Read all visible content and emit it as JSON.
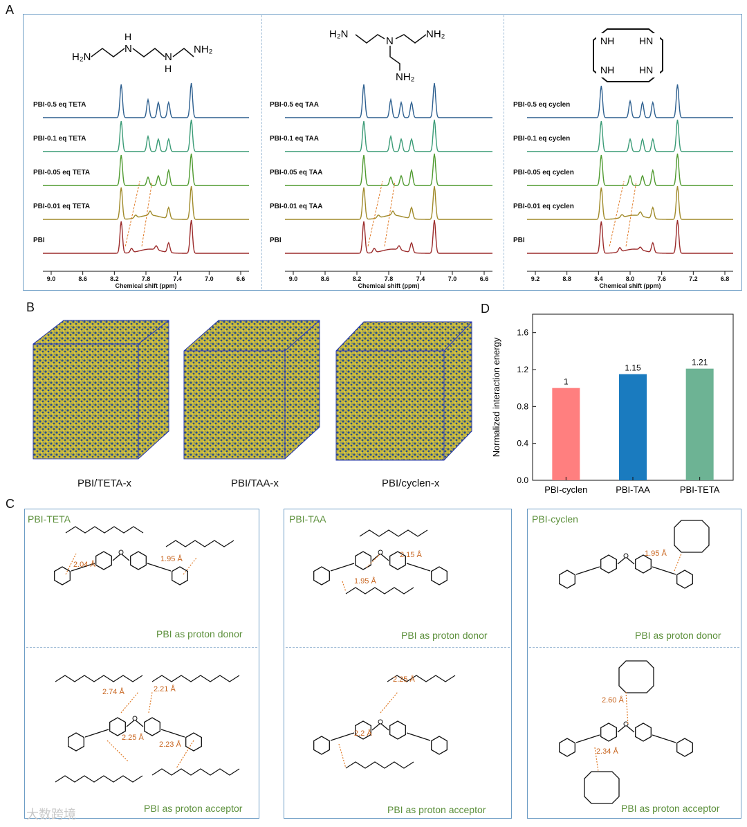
{
  "panel_letters": {
    "a": "A",
    "b": "B",
    "c": "C",
    "d": "D"
  },
  "nmr": {
    "x_label": "Chemical shift (ppm)",
    "panels": [
      {
        "labels": [
          "PBI-0.5 eq TETA",
          "PBI-0.1 eq TETA",
          "PBI-0.05 eq TETA",
          "PBI-0.01 eq TETA",
          "PBI"
        ],
        "ticks": [
          "9.0",
          "8.6",
          "8.2",
          "7.8",
          "7.4",
          "7.0",
          "6.6"
        ]
      },
      {
        "labels": [
          "PBI-0.5 eq TAA",
          "PBI-0.1 eq TAA",
          "PBI-0.05 eq TAA",
          "PBI-0.01 eq TAA",
          "PBI"
        ],
        "ticks": [
          "9.0",
          "8.6",
          "8.2",
          "7.8",
          "7.4",
          "7.0",
          "6.6"
        ]
      },
      {
        "labels": [
          "PBI-0.5 eq cyclen",
          "PBI-0.1 eq cyclen",
          "PBI-0.05 eq cyclen",
          "PBI-0.01 eq cyclen",
          "PBI"
        ],
        "ticks": [
          "9.2",
          "8.8",
          "8.4",
          "8.0",
          "7.6",
          "7.2",
          "6.8"
        ]
      }
    ],
    "colors": [
      "#2d5f8f",
      "#3a9b76",
      "#4f9a2f",
      "#a08a2a",
      "#9b2b2b"
    ]
  },
  "structures": {
    "teta": {
      "h1": "H",
      "n1": "N",
      "n2": "N",
      "h2": "H",
      "left": "H₂N",
      "right": "NH₂"
    },
    "taa": {
      "left": "H₂N",
      "n": "N",
      "right": "NH₂",
      "bottom": "NH₂"
    },
    "cyclen": {
      "nh1": "NH",
      "hn1": "HN",
      "nh2": "NH",
      "hn2": "HN"
    }
  },
  "md_boxes": {
    "captions": [
      "PBI/TETA-x",
      "PBI/TAA-x",
      "PBI/cyclen-x"
    ]
  },
  "chart_data": {
    "type": "bar",
    "categories": [
      "PBI-cyclen",
      "PBI-TAA",
      "PBI-TETA"
    ],
    "values": [
      1,
      1.15,
      1.21
    ],
    "value_labels": [
      "1",
      "1.15",
      "1.21"
    ],
    "colors": [
      "#ff7f7f",
      "#1a7bbf",
      "#6db394"
    ],
    "ylabel": "Normalized interaction energy",
    "ylim": [
      0,
      1.8
    ],
    "yticks": [
      "0.0",
      "0.4",
      "0.8",
      "1.2",
      "1.6"
    ]
  },
  "interactions": {
    "teta": {
      "title": "PBI-TETA",
      "donor": "PBI as proton donor",
      "acceptor": "PBI as proton acceptor",
      "d1": "2.04 Å",
      "d2": "1.95 Å",
      "a1": "2.74 Å",
      "a2": "2.21 Å",
      "a3": "2.25 Å",
      "a4": "2.23 Å"
    },
    "taa": {
      "title": "PBI-TAA",
      "donor": "PBI as proton donor",
      "acceptor": "PBI as proton acceptor",
      "d1": "2.15 Å",
      "d2": "1.95 Å",
      "a1": "2.25 Å",
      "a2": "2.2 Å"
    },
    "cyclen": {
      "title": "PBI-cyclen",
      "donor": "PBI as proton donor",
      "acceptor": "PBI as proton acceptor",
      "d1": "1.95 Å",
      "a1": "2.60 Å",
      "a2": "2.34 Å"
    }
  },
  "watermark": "大数跨境"
}
